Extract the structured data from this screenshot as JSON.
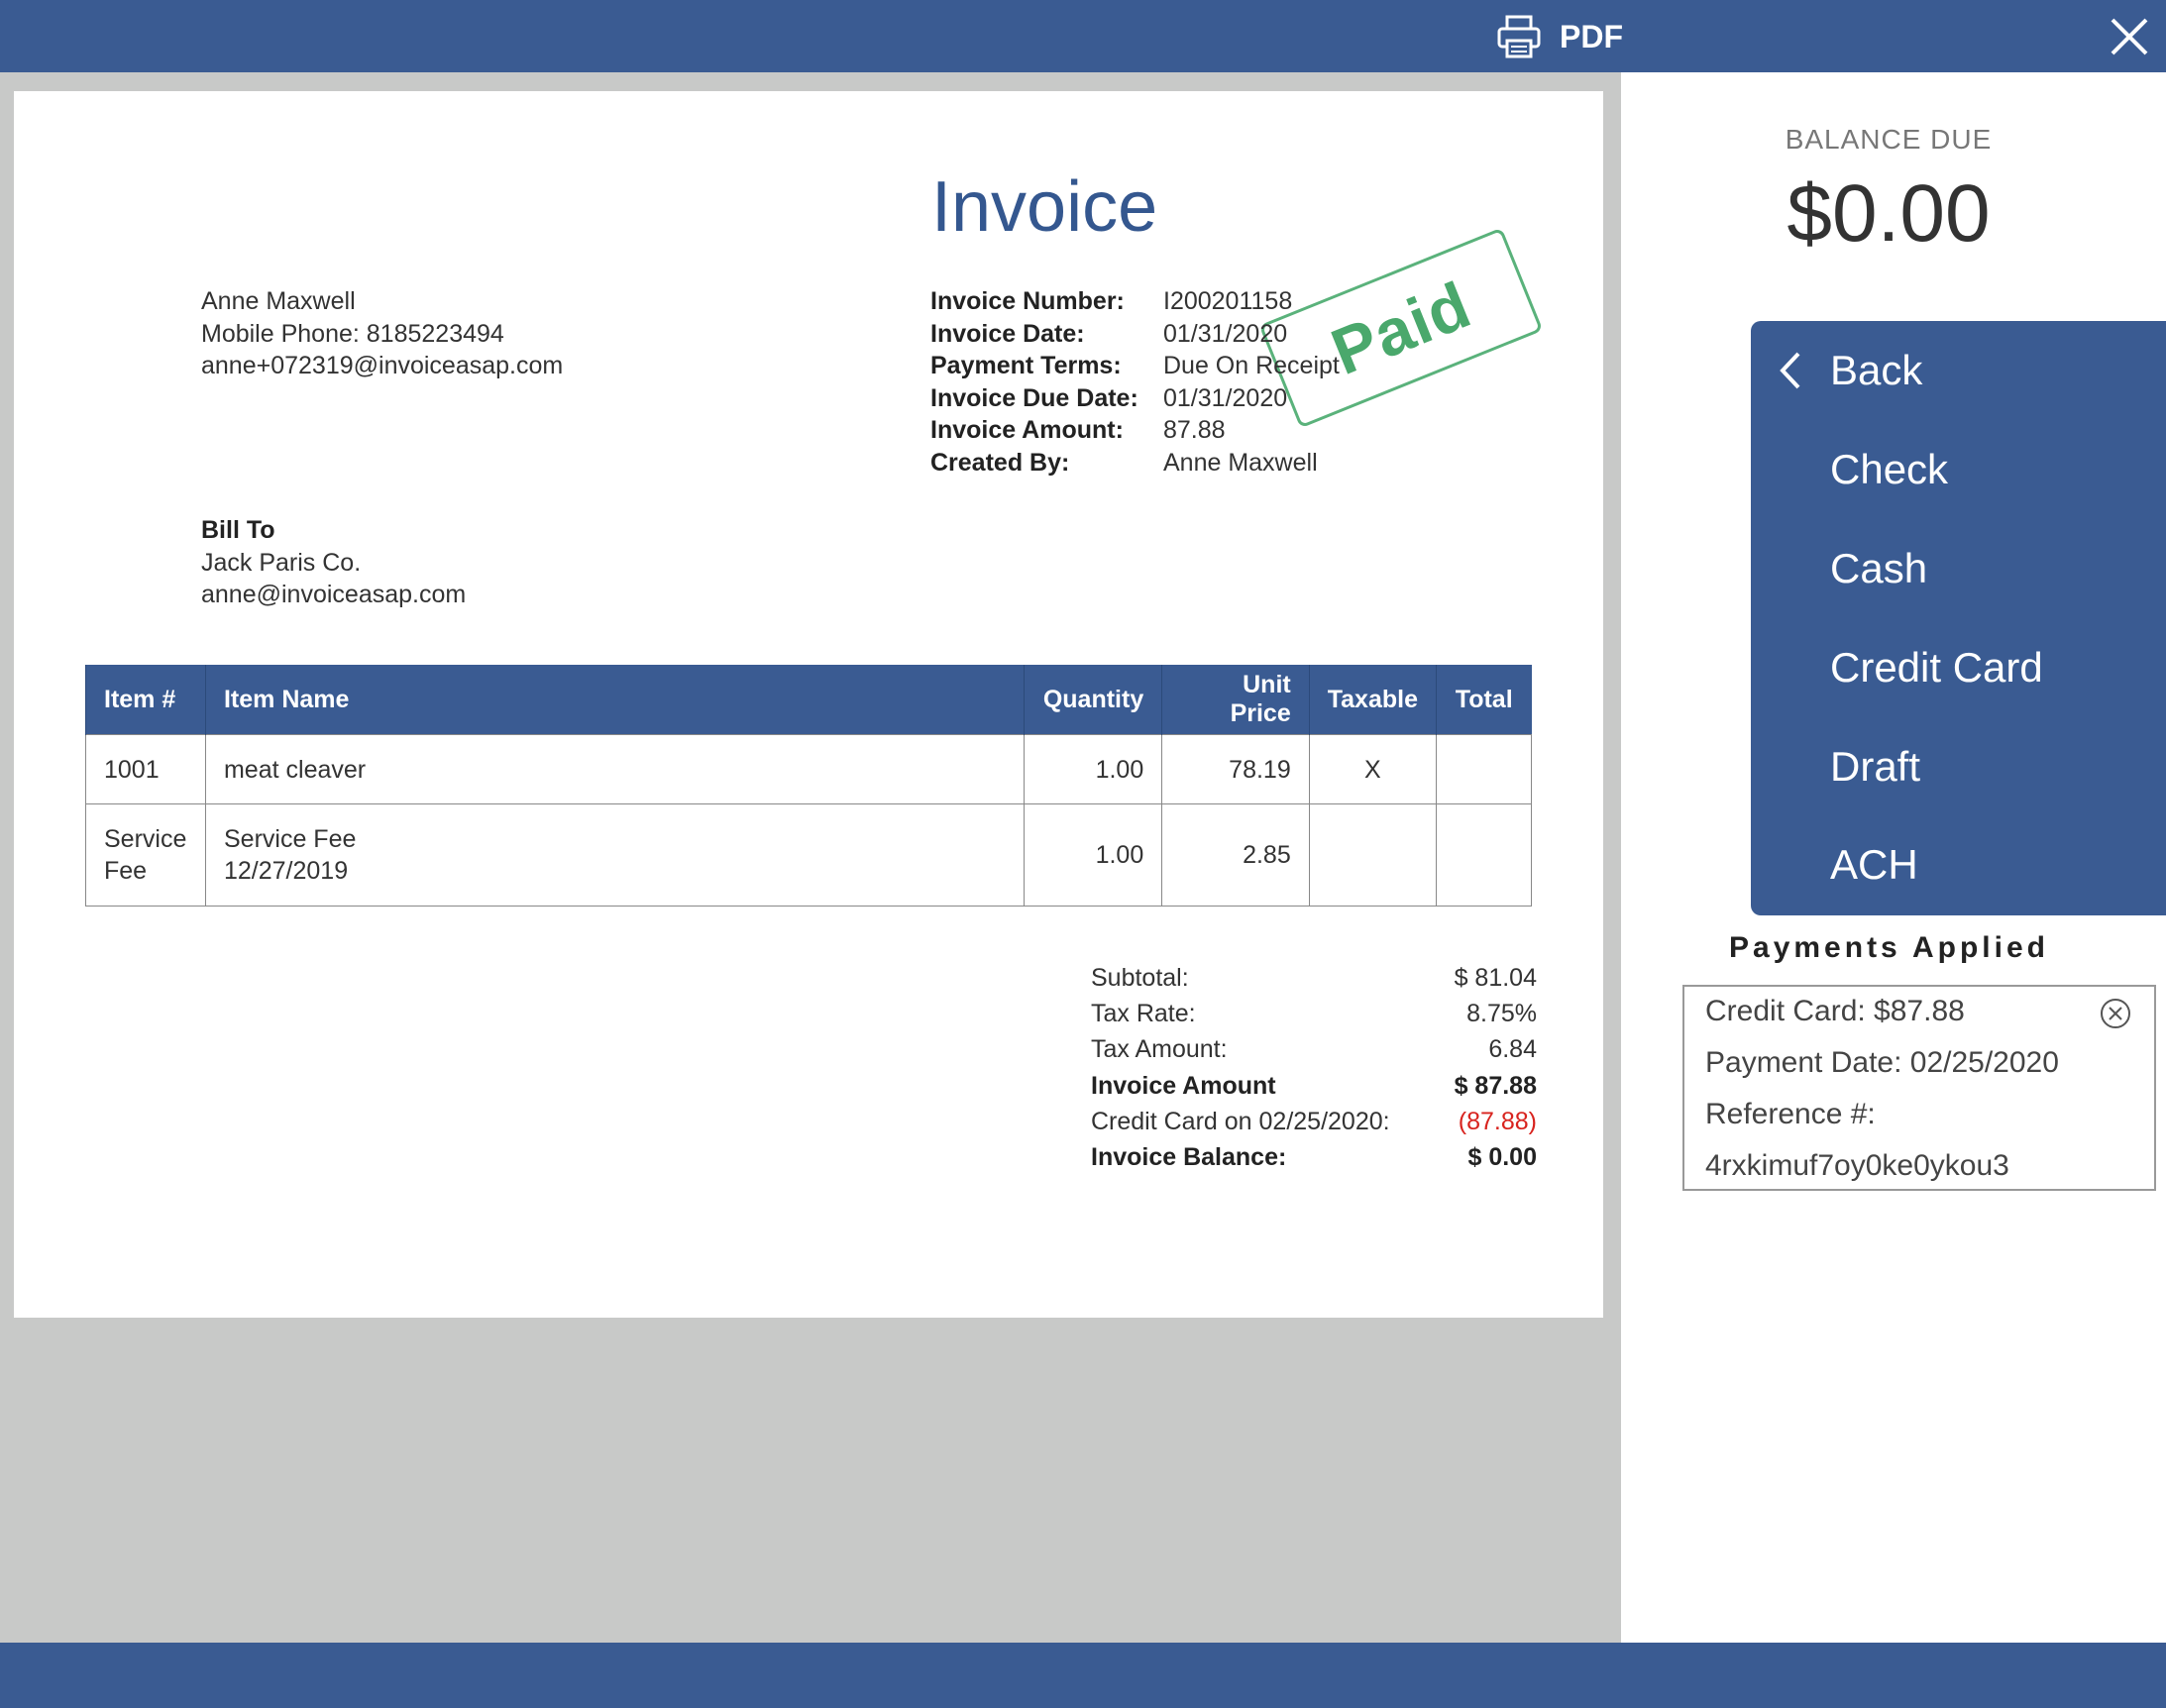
{
  "toolbar": {
    "pdf_label": "PDF",
    "pdf_icon": "printer-icon",
    "close_icon": "close-icon"
  },
  "invoice": {
    "title": "Invoice",
    "stamp": "Paid",
    "sender": {
      "name": "Anne Maxwell",
      "phone": "Mobile Phone: 8185223494",
      "email": "anne+072319@invoiceasap.com"
    },
    "meta": [
      {
        "label": "Invoice Number:",
        "value": "I200201158"
      },
      {
        "label": "Invoice Date:",
        "value": "01/31/2020"
      },
      {
        "label": "Payment Terms:",
        "value": "Due On Receipt"
      },
      {
        "label": "Invoice Due Date:",
        "value": "01/31/2020"
      },
      {
        "label": "Invoice Amount:",
        "value": "87.88"
      },
      {
        "label": "Created By:",
        "value": "Anne Maxwell"
      }
    ],
    "bill_to": {
      "heading": "Bill To",
      "name": "Jack Paris Co.",
      "email": "anne@invoiceasap.com"
    },
    "table": {
      "headers": [
        "Item #",
        "Item Name",
        "Quantity",
        "Unit Price",
        "Taxable",
        "Total"
      ],
      "rows": [
        {
          "item_no": "1001",
          "item_no_2": "",
          "name": "meat cleaver",
          "name_2": "",
          "qty": "1.00",
          "price": "78.19",
          "taxable": "X",
          "total": ""
        },
        {
          "item_no": "Service",
          "item_no_2": "Fee",
          "name": "Service Fee",
          "name_2": "12/27/2019",
          "qty": "1.00",
          "price": "2.85",
          "taxable": "",
          "total": ""
        }
      ]
    },
    "totals": [
      {
        "label": "Subtotal:",
        "value": "$ 81.04"
      },
      {
        "label": "Tax Rate:",
        "value": "8.75%"
      },
      {
        "label": "Tax Amount:",
        "value": "6.84"
      },
      {
        "label": "Invoice Amount",
        "value": "$ 87.88"
      },
      {
        "label": "Credit Card on 02/25/2020:",
        "value": "(87.88)"
      },
      {
        "label": "Invoice Balance:",
        "value": "$ 0.00"
      }
    ]
  },
  "sidebar": {
    "balance_label": "BALANCE DUE",
    "balance_amount": "$0.00",
    "menu": [
      "Back",
      "Check",
      "Cash",
      "Credit Card",
      "Draft",
      "ACH"
    ],
    "payments_heading": "Payments Applied",
    "payment": {
      "method": "Credit Card: $87.88",
      "date": "Payment Date: 02/25/2020",
      "reference_label": "Reference #:",
      "reference": "4rxkimuf7oy0ke0ykou3"
    }
  },
  "colors": {
    "brand": "#3a5b92",
    "stamp_green": "#4aa86c",
    "negative_red": "#d8231e"
  }
}
